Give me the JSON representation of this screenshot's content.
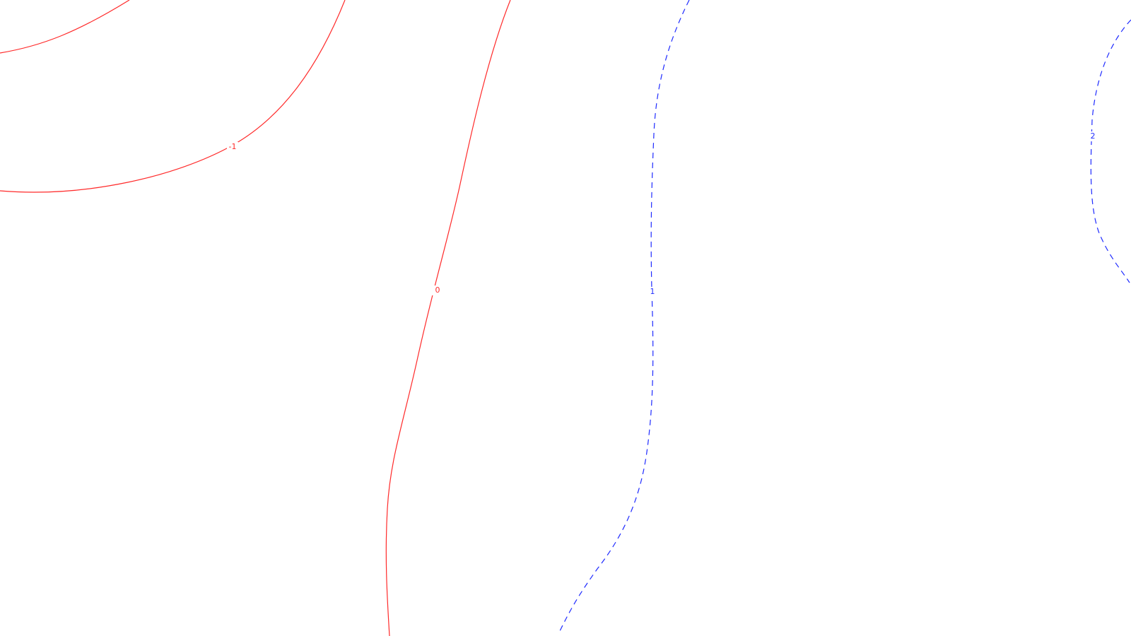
{
  "chart_data": {
    "type": "contour",
    "title": "",
    "xlabel": "",
    "ylabel": "",
    "grid": false,
    "legend": false,
    "colors": {
      "negative": "#ff2a2a",
      "positive": "#1f2bff"
    },
    "levels": [
      {
        "value": -1,
        "label": "-1",
        "color": "#ff2a2a",
        "style": "solid"
      },
      {
        "value": 0,
        "label": "0",
        "color": "#ff2a2a",
        "style": "solid"
      },
      {
        "value": 1,
        "label": "1",
        "color": "#1f2bff",
        "style": "dashed"
      },
      {
        "value": 2,
        "label": "2",
        "color": "#1f2bff",
        "style": "dashed"
      }
    ]
  }
}
